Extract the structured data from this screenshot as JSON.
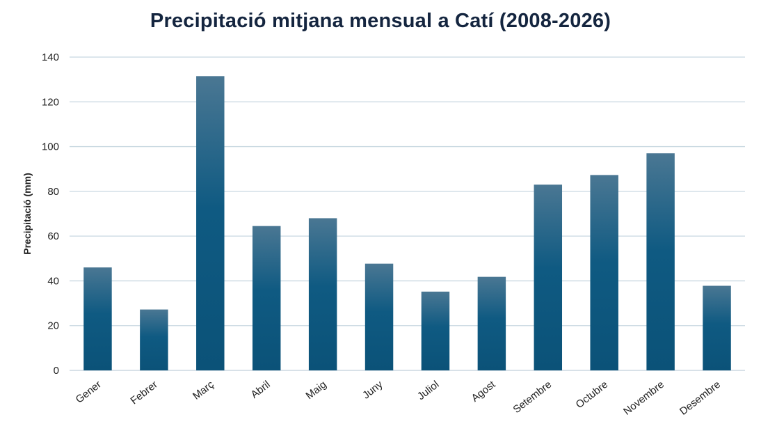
{
  "chart_data": {
    "type": "bar",
    "title": "Precipitació mitjana mensual a Catí (2008-2026)",
    "xlabel": "",
    "ylabel": "Precipitació (mm)",
    "ylim": [
      0,
      140
    ],
    "yticks": [
      0,
      20,
      40,
      60,
      80,
      100,
      120,
      140
    ],
    "grid": true,
    "legend": "none",
    "categories": [
      "Gener",
      "Febrer",
      "Març",
      "Abril",
      "Maig",
      "Juny",
      "Juliol",
      "Agost",
      "Setembre",
      "Octubre",
      "Novembre",
      "Desembre"
    ],
    "values": [
      46,
      27.2,
      131.5,
      64.5,
      68,
      47.7,
      35.2,
      41.8,
      83,
      87.3,
      97,
      37.8
    ],
    "colors": {
      "bar_top": "#4a7793",
      "bar_mid": "#0f5a82",
      "bar_bottom": "#0b5278",
      "grid": "#c8d7e0",
      "title": "#14253f"
    }
  }
}
